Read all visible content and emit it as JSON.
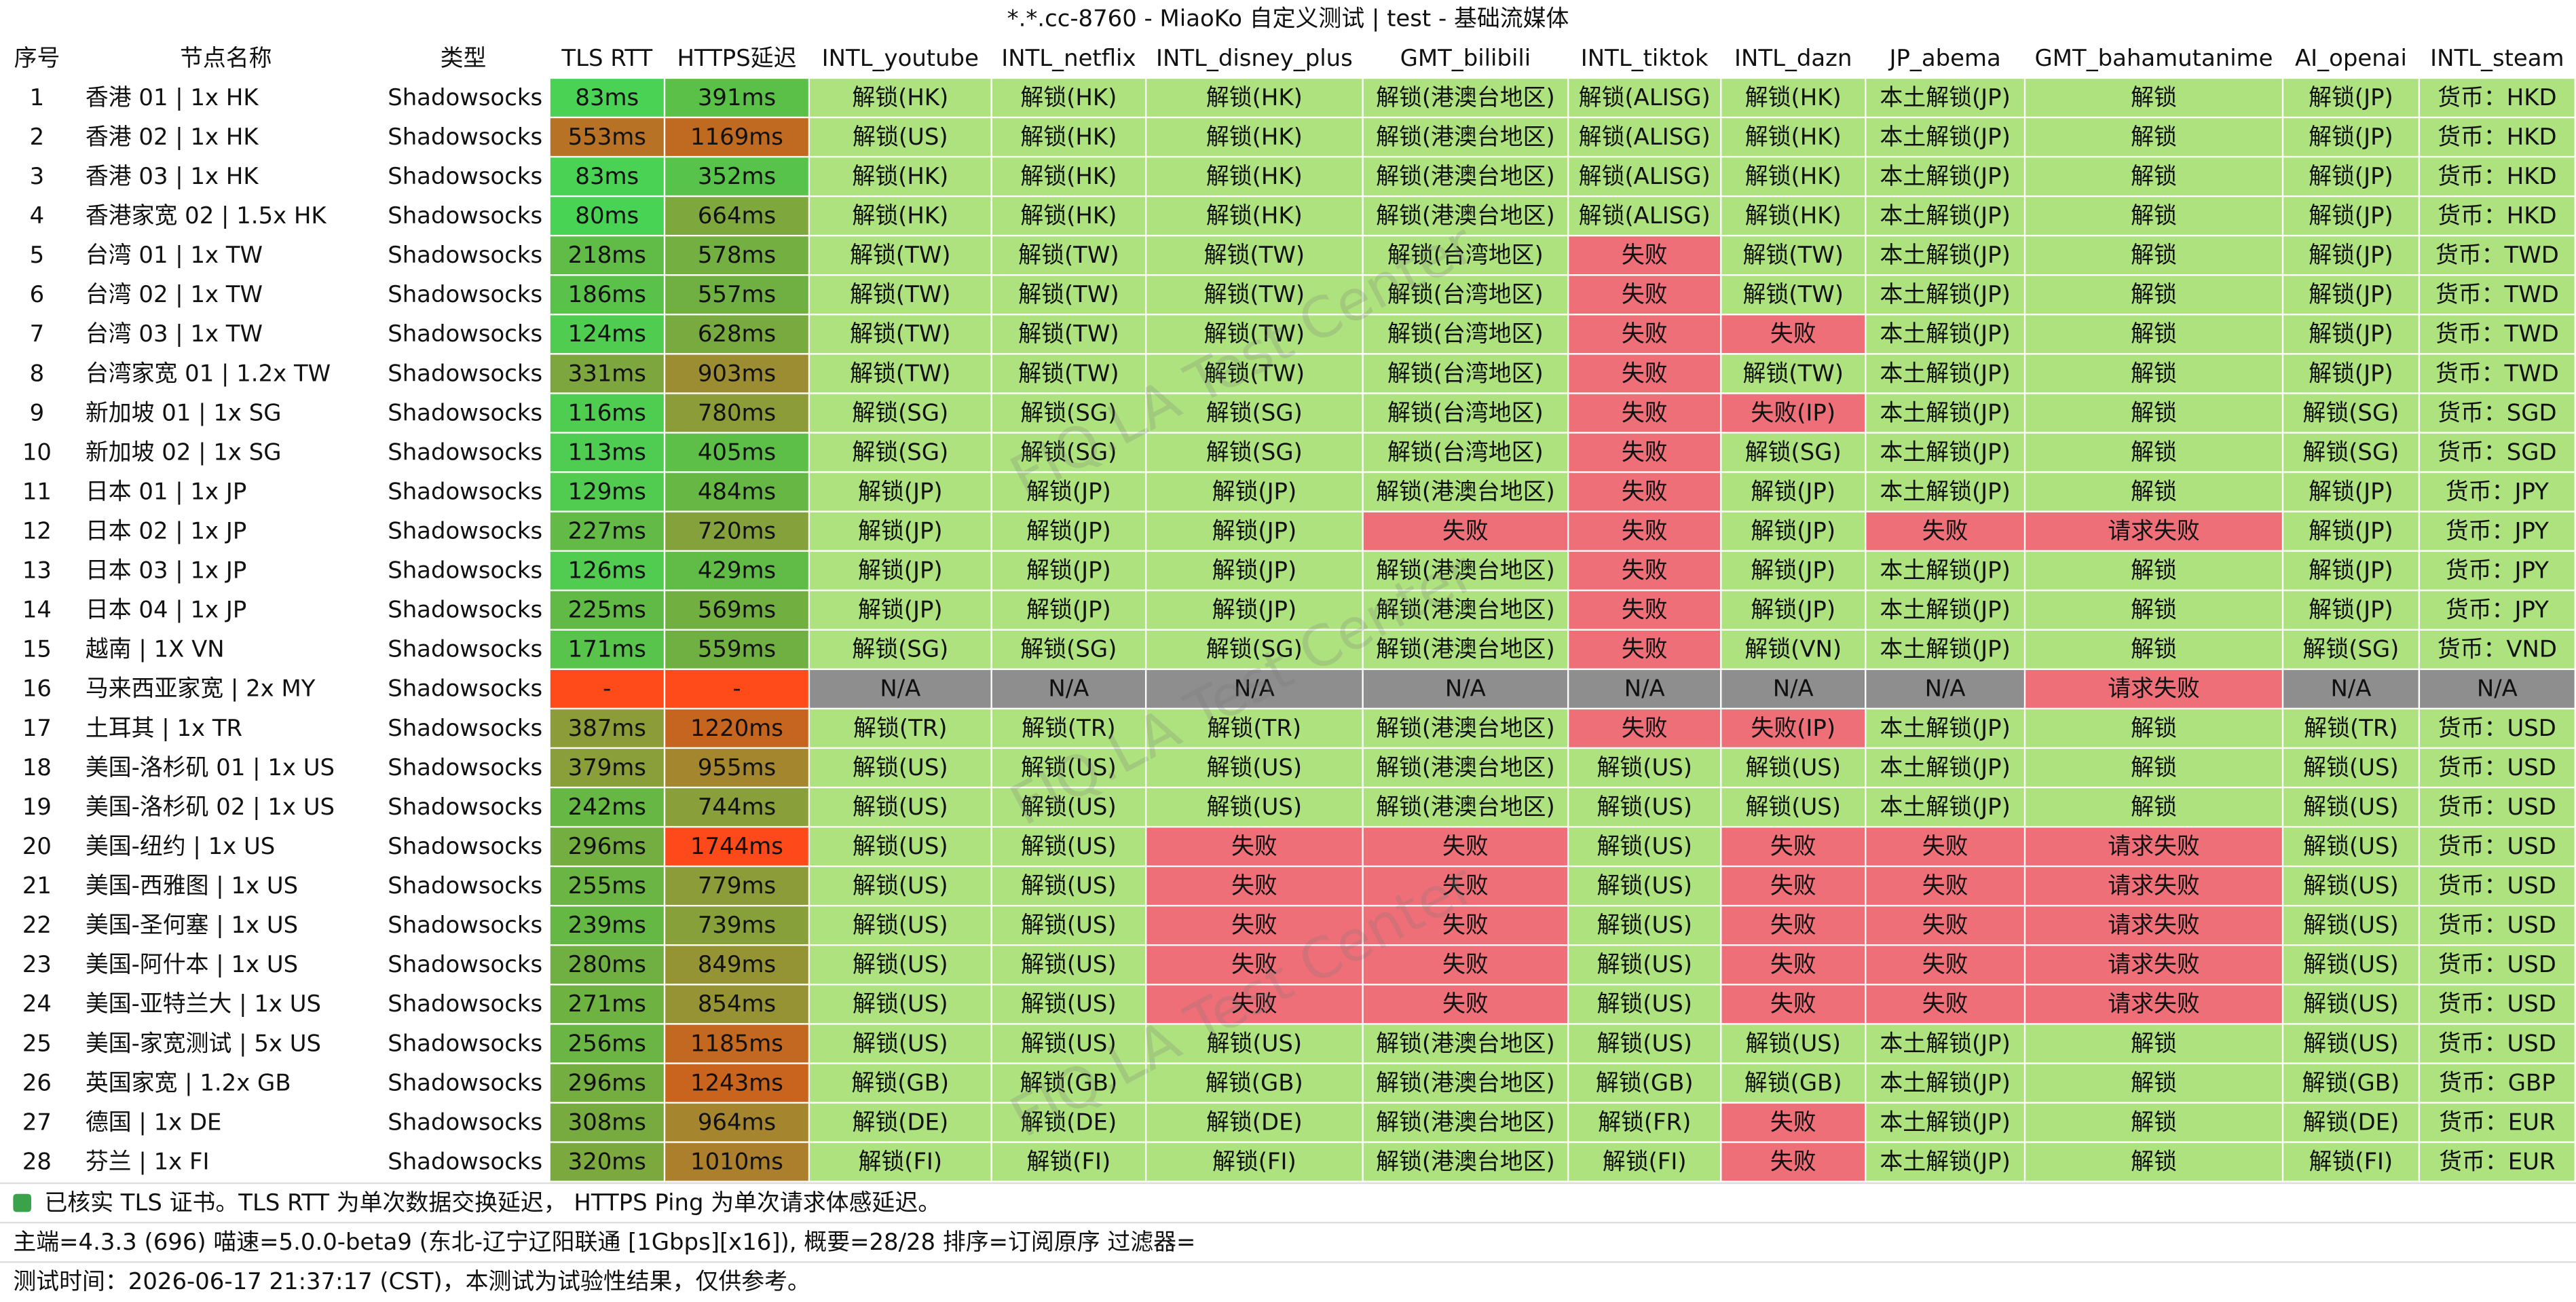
{
  "window_title": "*.*.cc-8760 - MiaoKo 自定义测试 | test - 基础流媒体",
  "watermark": "FIQ.LA Test Center",
  "table": {
    "headers": [
      "序号",
      "节点名称",
      "类型",
      "TLS RTT",
      "HTTPS延迟",
      "INTL_youtube",
      "INTL_netflix",
      "INTL_disney_plus",
      "GMT_bilibili",
      "INTL_tiktok",
      "INTL_dazn",
      "JP_abema",
      "GMT_bahamutanime",
      "AI_openai",
      "INTL_steam"
    ],
    "rows": [
      [
        "1",
        "香港 01 | 1x HK",
        "Shadowsocks",
        "83ms",
        "391ms",
        "解锁(HK)",
        "解锁(HK)",
        "解锁(HK)",
        "解锁(港澳台地区)",
        "解锁(ALISG)",
        "解锁(HK)",
        "本土解锁(JP)",
        "解锁",
        "解锁(JP)",
        "货币：HKD"
      ],
      [
        "2",
        "香港 02 | 1x HK",
        "Shadowsocks",
        "553ms",
        "1169ms",
        "解锁(US)",
        "解锁(HK)",
        "解锁(HK)",
        "解锁(港澳台地区)",
        "解锁(ALISG)",
        "解锁(HK)",
        "本土解锁(JP)",
        "解锁",
        "解锁(JP)",
        "货币：HKD"
      ],
      [
        "3",
        "香港 03 | 1x HK",
        "Shadowsocks",
        "83ms",
        "352ms",
        "解锁(HK)",
        "解锁(HK)",
        "解锁(HK)",
        "解锁(港澳台地区)",
        "解锁(ALISG)",
        "解锁(HK)",
        "本土解锁(JP)",
        "解锁",
        "解锁(JP)",
        "货币：HKD"
      ],
      [
        "4",
        "香港家宽 02 | 1.5x HK",
        "Shadowsocks",
        "80ms",
        "664ms",
        "解锁(HK)",
        "解锁(HK)",
        "解锁(HK)",
        "解锁(港澳台地区)",
        "解锁(ALISG)",
        "解锁(HK)",
        "本土解锁(JP)",
        "解锁",
        "解锁(JP)",
        "货币：HKD"
      ],
      [
        "5",
        "台湾 01 | 1x TW",
        "Shadowsocks",
        "218ms",
        "578ms",
        "解锁(TW)",
        "解锁(TW)",
        "解锁(TW)",
        "解锁(台湾地区)",
        "失败",
        "解锁(TW)",
        "本土解锁(JP)",
        "解锁",
        "解锁(JP)",
        "货币：TWD"
      ],
      [
        "6",
        "台湾 02 | 1x TW",
        "Shadowsocks",
        "186ms",
        "557ms",
        "解锁(TW)",
        "解锁(TW)",
        "解锁(TW)",
        "解锁(台湾地区)",
        "失败",
        "解锁(TW)",
        "本土解锁(JP)",
        "解锁",
        "解锁(JP)",
        "货币：TWD"
      ],
      [
        "7",
        "台湾 03 | 1x TW",
        "Shadowsocks",
        "124ms",
        "628ms",
        "解锁(TW)",
        "解锁(TW)",
        "解锁(TW)",
        "解锁(台湾地区)",
        "失败",
        "失败",
        "本土解锁(JP)",
        "解锁",
        "解锁(JP)",
        "货币：TWD"
      ],
      [
        "8",
        "台湾家宽 01 | 1.2x TW",
        "Shadowsocks",
        "331ms",
        "903ms",
        "解锁(TW)",
        "解锁(TW)",
        "解锁(TW)",
        "解锁(台湾地区)",
        "失败",
        "解锁(TW)",
        "本土解锁(JP)",
        "解锁",
        "解锁(JP)",
        "货币：TWD"
      ],
      [
        "9",
        "新加坡 01 | 1x SG",
        "Shadowsocks",
        "116ms",
        "780ms",
        "解锁(SG)",
        "解锁(SG)",
        "解锁(SG)",
        "解锁(台湾地区)",
        "失败",
        "失败(IP)",
        "本土解锁(JP)",
        "解锁",
        "解锁(SG)",
        "货币：SGD"
      ],
      [
        "10",
        "新加坡 02 | 1x SG",
        "Shadowsocks",
        "113ms",
        "405ms",
        "解锁(SG)",
        "解锁(SG)",
        "解锁(SG)",
        "解锁(台湾地区)",
        "失败",
        "解锁(SG)",
        "本土解锁(JP)",
        "解锁",
        "解锁(SG)",
        "货币：SGD"
      ],
      [
        "11",
        "日本 01 | 1x JP",
        "Shadowsocks",
        "129ms",
        "484ms",
        "解锁(JP)",
        "解锁(JP)",
        "解锁(JP)",
        "解锁(港澳台地区)",
        "失败",
        "解锁(JP)",
        "本土解锁(JP)",
        "解锁",
        "解锁(JP)",
        "货币：JPY"
      ],
      [
        "12",
        "日本 02 | 1x JP",
        "Shadowsocks",
        "227ms",
        "720ms",
        "解锁(JP)",
        "解锁(JP)",
        "解锁(JP)",
        "失败",
        "失败",
        "解锁(JP)",
        "失败",
        "请求失败",
        "解锁(JP)",
        "货币：JPY"
      ],
      [
        "13",
        "日本 03 | 1x JP",
        "Shadowsocks",
        "126ms",
        "429ms",
        "解锁(JP)",
        "解锁(JP)",
        "解锁(JP)",
        "解锁(港澳台地区)",
        "失败",
        "解锁(JP)",
        "本土解锁(JP)",
        "解锁",
        "解锁(JP)",
        "货币：JPY"
      ],
      [
        "14",
        "日本 04 | 1x JP",
        "Shadowsocks",
        "225ms",
        "569ms",
        "解锁(JP)",
        "解锁(JP)",
        "解锁(JP)",
        "解锁(港澳台地区)",
        "失败",
        "解锁(JP)",
        "本土解锁(JP)",
        "解锁",
        "解锁(JP)",
        "货币：JPY"
      ],
      [
        "15",
        "越南  | 1X VN",
        "Shadowsocks",
        "171ms",
        "559ms",
        "解锁(SG)",
        "解锁(SG)",
        "解锁(SG)",
        "解锁(港澳台地区)",
        "失败",
        "解锁(VN)",
        "本土解锁(JP)",
        "解锁",
        "解锁(SG)",
        "货币：VND"
      ],
      [
        "16",
        "马来西亚家宽  | 2x MY",
        "Shadowsocks",
        "-",
        "-",
        "N/A",
        "N/A",
        "N/A",
        "N/A",
        "N/A",
        "N/A",
        "N/A",
        "请求失败",
        "N/A",
        "N/A"
      ],
      [
        "17",
        "土耳其 | 1x TR",
        "Shadowsocks",
        "387ms",
        "1220ms",
        "解锁(TR)",
        "解锁(TR)",
        "解锁(TR)",
        "解锁(港澳台地区)",
        "失败",
        "失败(IP)",
        "本土解锁(JP)",
        "解锁",
        "解锁(TR)",
        "货币：USD"
      ],
      [
        "18",
        "美国-洛杉矶 01 | 1x US",
        "Shadowsocks",
        "379ms",
        "955ms",
        "解锁(US)",
        "解锁(US)",
        "解锁(US)",
        "解锁(港澳台地区)",
        "解锁(US)",
        "解锁(US)",
        "本土解锁(JP)",
        "解锁",
        "解锁(US)",
        "货币：USD"
      ],
      [
        "19",
        "美国-洛杉矶 02 | 1x US",
        "Shadowsocks",
        "242ms",
        "744ms",
        "解锁(US)",
        "解锁(US)",
        "解锁(US)",
        "解锁(港澳台地区)",
        "解锁(US)",
        "解锁(US)",
        "本土解锁(JP)",
        "解锁",
        "解锁(US)",
        "货币：USD"
      ],
      [
        "20",
        "美国-纽约  | 1x US",
        "Shadowsocks",
        "296ms",
        "1744ms",
        "解锁(US)",
        "解锁(US)",
        "失败",
        "失败",
        "解锁(US)",
        "失败",
        "失败",
        "请求失败",
        "解锁(US)",
        "货币：USD"
      ],
      [
        "21",
        "美国-西雅图 | 1x US",
        "Shadowsocks",
        "255ms",
        "779ms",
        "解锁(US)",
        "解锁(US)",
        "失败",
        "失败",
        "解锁(US)",
        "失败",
        "失败",
        "请求失败",
        "解锁(US)",
        "货币：USD"
      ],
      [
        "22",
        "美国-圣何塞 | 1x US",
        "Shadowsocks",
        "239ms",
        "739ms",
        "解锁(US)",
        "解锁(US)",
        "失败",
        "失败",
        "解锁(US)",
        "失败",
        "失败",
        "请求失败",
        "解锁(US)",
        "货币：USD"
      ],
      [
        "23",
        "美国-阿什本 | 1x US",
        "Shadowsocks",
        "280ms",
        "849ms",
        "解锁(US)",
        "解锁(US)",
        "失败",
        "失败",
        "解锁(US)",
        "失败",
        "失败",
        "请求失败",
        "解锁(US)",
        "货币：USD"
      ],
      [
        "24",
        "美国-亚特兰大 | 1x US",
        "Shadowsocks",
        "271ms",
        "854ms",
        "解锁(US)",
        "解锁(US)",
        "失败",
        "失败",
        "解锁(US)",
        "失败",
        "失败",
        "请求失败",
        "解锁(US)",
        "货币：USD"
      ],
      [
        "25",
        "美国-家宽测试 | 5x US",
        "Shadowsocks",
        "256ms",
        "1185ms",
        "解锁(US)",
        "解锁(US)",
        "解锁(US)",
        "解锁(港澳台地区)",
        "解锁(US)",
        "解锁(US)",
        "本土解锁(JP)",
        "解锁",
        "解锁(US)",
        "货币：USD"
      ],
      [
        "26",
        "英国家宽 | 1.2x GB",
        "Shadowsocks",
        "296ms",
        "1243ms",
        "解锁(GB)",
        "解锁(GB)",
        "解锁(GB)",
        "解锁(港澳台地区)",
        "解锁(GB)",
        "解锁(GB)",
        "本土解锁(JP)",
        "解锁",
        "解锁(GB)",
        "货币：GBP"
      ],
      [
        "27",
        "德国 | 1x DE",
        "Shadowsocks",
        "308ms",
        "964ms",
        "解锁(DE)",
        "解锁(DE)",
        "解锁(DE)",
        "解锁(港澳台地区)",
        "解锁(FR)",
        "失败",
        "本土解锁(JP)",
        "解锁",
        "解锁(DE)",
        "货币：EUR"
      ],
      [
        "28",
        "芬兰 | 1x FI",
        "Shadowsocks",
        "320ms",
        "1010ms",
        "解锁(FI)",
        "解锁(FI)",
        "解锁(FI)",
        "解锁(港澳台地区)",
        "解锁(FI)",
        "失败",
        "本土解锁(JP)",
        "解锁",
        "解锁(FI)",
        "货币：EUR"
      ]
    ]
  },
  "footer": [
    "已核实 TLS 证书。TLS RTT 为单次数据交换延迟， HTTPS Ping 为单次请求体感延迟。",
    "主端=4.3.3 (696) 喵速=5.0.0-beta9 (东北-辽宁辽阳联通 [1Gbps][x16]), 概要=28/28 排序=订阅原序 过滤器=",
    "测试时间：2026-06-17 21:37:17 (CST)，本测试为试验性结果，仅供参考。"
  ]
}
